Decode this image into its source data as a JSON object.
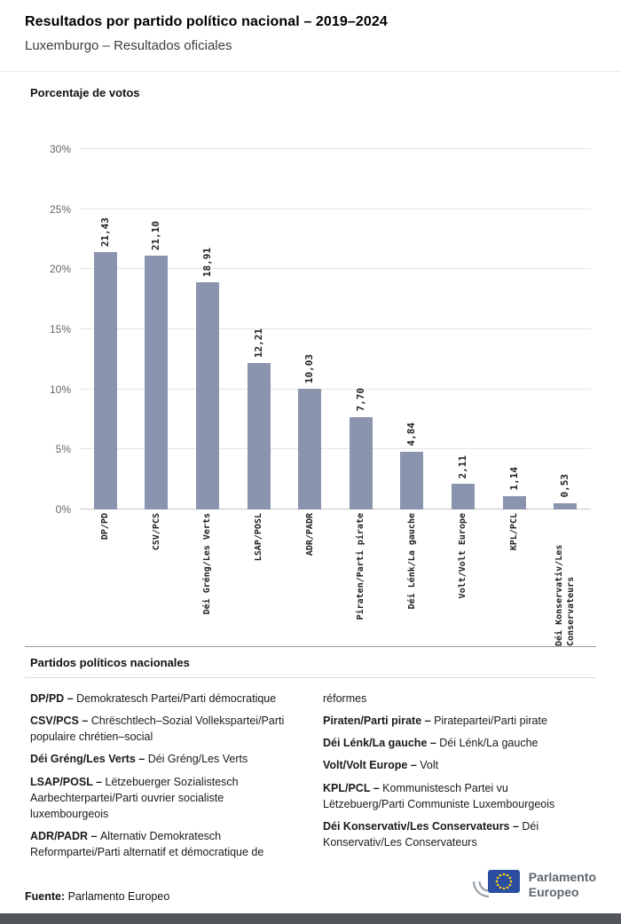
{
  "header": {
    "title": "Resultados por partido político nacional – 2019–2024",
    "subtitle": "Luxemburgo – Resultados oficiales"
  },
  "chart_data": {
    "type": "bar",
    "title": "Porcentaje de votos",
    "categories": [
      "DP/PD",
      "CSV/PCS",
      "Déi Gréng/Les Verts",
      "LSAP/POSL",
      "ADR/PADR",
      "Piraten/Parti pirate",
      "Déi Lénk/La gauche",
      "Volt/Volt Europe",
      "KPL/PCL",
      "Déi Konservativ/Les Conservateurs"
    ],
    "values": [
      21.43,
      21.1,
      18.91,
      12.21,
      10.03,
      7.7,
      4.84,
      2.11,
      1.14,
      0.53
    ],
    "value_labels": [
      "21,43",
      "21,10",
      "18,91",
      "12,21",
      "10,03",
      "7,70",
      "4,84",
      "2,11",
      "1,14",
      "0,53"
    ],
    "ylim": [
      0,
      30
    ],
    "yticks": [
      "0%",
      "5%",
      "10%",
      "15%",
      "20%",
      "25%",
      "30%"
    ],
    "grid": true,
    "legend": "none",
    "bar_color": "#8a94af"
  },
  "party_section": {
    "heading": "Partidos políticos nacionales",
    "columns": {
      "left": [
        {
          "term": "DP/PD –",
          "definition": "Demokratesch Partei/Parti démocratique"
        },
        {
          "term": "CSV/PCS –",
          "definition": "Chrëschtlech–Sozial Vollekspartei/Parti populaire chrétien–social"
        },
        {
          "term": "Déi Gréng/Les Verts –",
          "definition": "Déi Gréng/Les Verts"
        },
        {
          "term": "LSAP/POSL –",
          "definition": "Lëtzebuerger Sozialistesch Aarbechterpartei/Parti ouvrier socialiste luxembourgeois"
        },
        {
          "term": "ADR/PADR –",
          "definition": "Alternativ Demokratesch Reformpartei/Parti alternatif et démocratique de"
        }
      ],
      "right": [
        {
          "term": "",
          "definition": "réformes"
        },
        {
          "term": "Piraten/Parti pirate –",
          "definition": "Piratepartei/Parti pirate"
        },
        {
          "term": "Déi Lénk/La gauche –",
          "definition": "Déi Lénk/La gauche"
        },
        {
          "term": "Volt/Volt Europe –",
          "definition": "Volt"
        },
        {
          "term": "KPL/PCL –",
          "definition": "Kommunistesch Partei vu Lëtzebuerg/Parti Communiste Luxembourgeois"
        },
        {
          "term": "Déi Konservativ/Les Conservateurs –",
          "definition": "Déi Konservativ/Les Conservateurs"
        }
      ]
    }
  },
  "footer": {
    "source_label": "Fuente:",
    "source_value": "Parlamento Europeo",
    "logo_text_line1": "Parlamento",
    "logo_text_line2": "Europeo"
  },
  "colors": {
    "bar": "#8a94af",
    "grid": "#e4e4e4",
    "axis_text": "#666666",
    "bottom_strip": "#53565a",
    "flag_blue": "#2a4d9f",
    "star_yellow": "#ffd617"
  }
}
